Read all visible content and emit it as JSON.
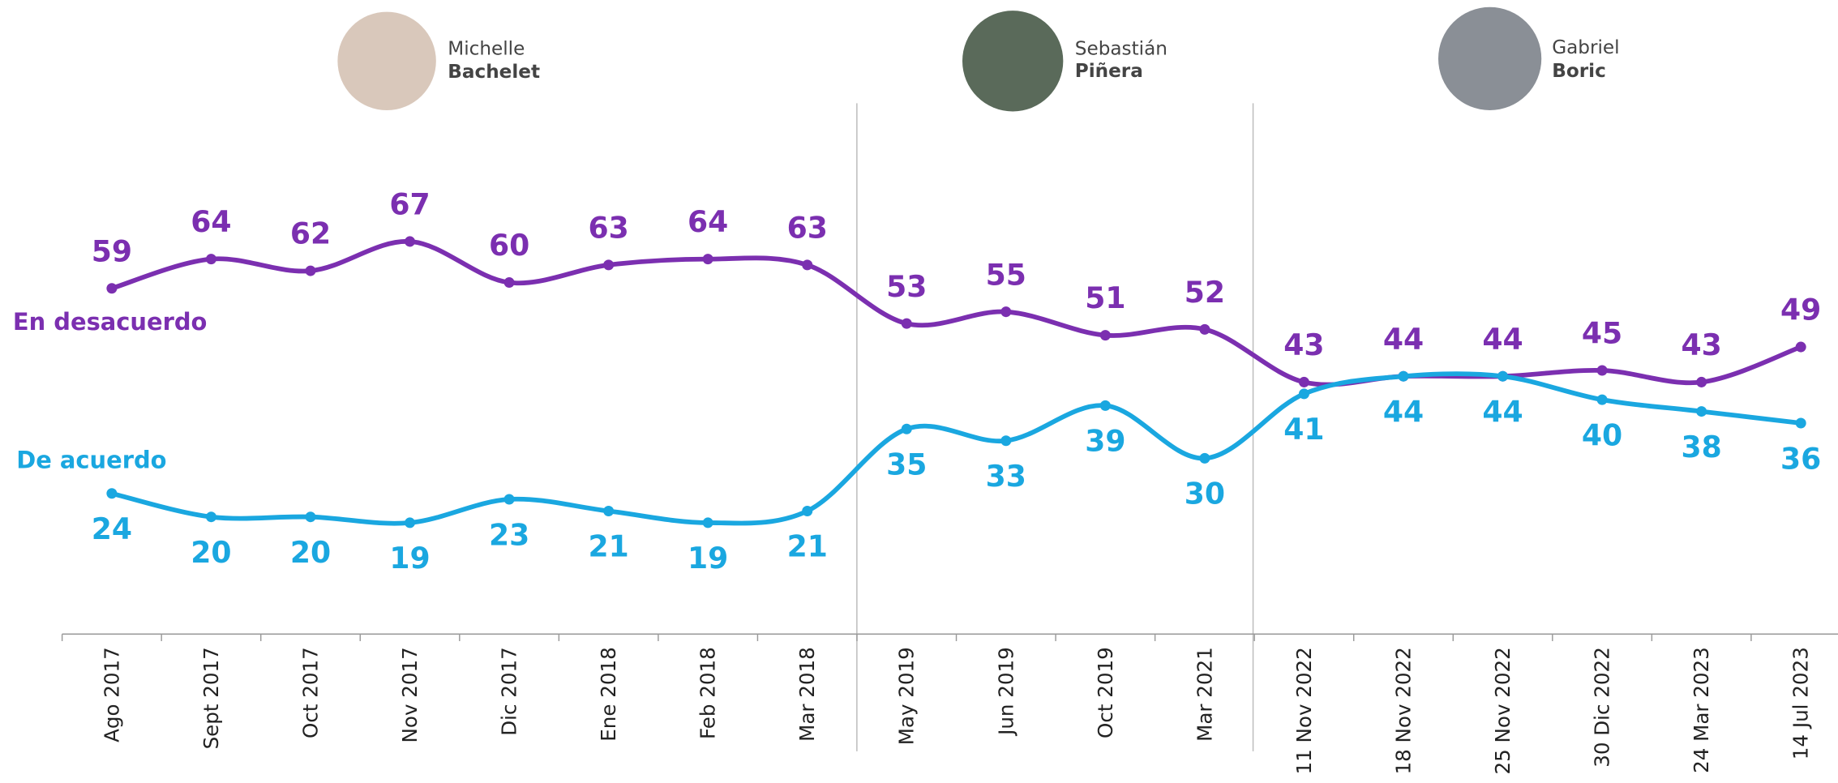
{
  "chart_data": {
    "type": "line",
    "categories": [
      "Ago 2017",
      "Sept 2017",
      "Oct 2017",
      "Nov 2017",
      "Dic 2017",
      "Ene 2018",
      "Feb 2018",
      "Mar 2018",
      "May 2019",
      "Jun 2019",
      "Oct  2019",
      "Mar 2021",
      "11 Nov 2022",
      "18 Nov 2022",
      "25 Nov 2022",
      "30 Dic 2022",
      "24 Mar 2023",
      "14 Jul 2023"
    ],
    "series": [
      {
        "name": "En desacuerdo",
        "color": "#7b2fb0",
        "values": [
          59,
          64,
          62,
          67,
          60,
          63,
          64,
          63,
          53,
          55,
          51,
          52,
          43,
          44,
          44,
          45,
          43,
          49
        ]
      },
      {
        "name": "De acuerdo",
        "color": "#1aa7e0",
        "values": [
          24,
          20,
          20,
          19,
          23,
          21,
          19,
          21,
          35,
          33,
          39,
          30,
          41,
          44,
          44,
          40,
          38,
          36
        ]
      }
    ],
    "ylim": [
      0,
      100
    ],
    "grid": false,
    "annotations": [
      {
        "first": "Michelle",
        "last": "Bachelet"
      },
      {
        "first": "Sebastián",
        "last": "Piñera"
      },
      {
        "first": "Gabriel",
        "last": "Boric"
      }
    ]
  }
}
